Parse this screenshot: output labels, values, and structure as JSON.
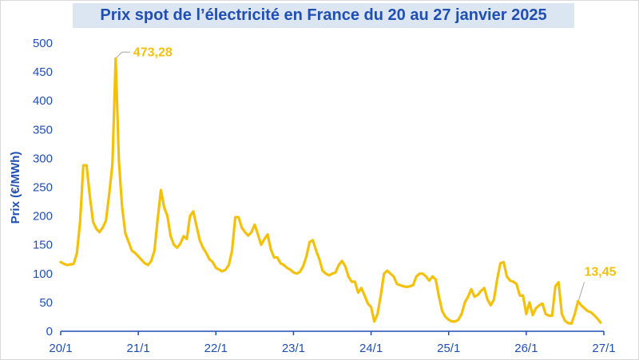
{
  "chart_data": {
    "type": "line",
    "title": "Prix spot de l’électricité en France du 20 au 27 janvier 2025",
    "xlabel": "",
    "ylabel": "Prix (€/MWh)",
    "ylim": [
      0,
      500
    ],
    "yticks": [
      0,
      50,
      100,
      150,
      200,
      250,
      300,
      350,
      400,
      450,
      500
    ],
    "xlim": [
      0,
      168
    ],
    "xticks": [
      {
        "x": 0,
        "label": "20/1"
      },
      {
        "x": 24,
        "label": "21/1"
      },
      {
        "x": 48,
        "label": "22/1"
      },
      {
        "x": 72,
        "label": "23/1"
      },
      {
        "x": 96,
        "label": "24/1"
      },
      {
        "x": 120,
        "label": "25/1"
      },
      {
        "x": 144,
        "label": "26/1"
      },
      {
        "x": 168,
        "label": "27/1"
      }
    ],
    "grid": false,
    "line_color": "#f4c10a",
    "axis_color": "#1f4fb3",
    "series": [
      {
        "values": [
          120,
          117,
          115,
          116,
          117,
          135,
          190,
          288,
          288,
          235,
          190,
          178,
          172,
          180,
          192,
          238,
          290,
          473.28,
          295,
          215,
          170,
          155,
          140,
          136,
          130,
          124,
          118,
          115,
          122,
          140,
          195,
          245,
          215,
          200,
          165,
          150,
          145,
          152,
          165,
          160,
          200,
          208,
          183,
          158,
          145,
          136,
          125,
          120,
          110,
          107,
          104,
          107,
          115,
          140,
          198,
          198,
          180,
          172,
          166,
          172,
          185,
          168,
          150,
          160,
          168,
          142,
          128,
          128,
          118,
          115,
          110,
          107,
          102,
          100,
          103,
          113,
          130,
          155,
          158,
          140,
          125,
          105,
          100,
          97,
          100,
          102,
          115,
          122,
          113,
          95,
          86,
          86,
          67,
          75,
          62,
          48,
          42,
          17,
          30,
          62,
          100,
          105,
          100,
          95,
          82,
          80,
          78,
          77,
          78,
          80,
          95,
          100,
          100,
          95,
          88,
          95,
          90,
          60,
          35,
          25,
          20,
          17,
          17,
          20,
          30,
          50,
          60,
          73,
          60,
          63,
          70,
          75,
          55,
          45,
          55,
          90,
          118,
          120,
          95,
          88,
          86,
          82,
          62,
          62,
          30,
          50,
          28,
          40,
          45,
          48,
          30,
          27,
          27,
          78,
          85,
          30,
          18,
          14,
          13.45,
          30,
          52,
          45,
          40,
          35,
          33,
          28,
          22,
          15
        ]
      }
    ],
    "annotations": [
      {
        "x": 17,
        "y": 473.28,
        "text": "473,28"
      },
      {
        "x": 158,
        "y": 13.45,
        "text": "13,45"
      }
    ]
  }
}
